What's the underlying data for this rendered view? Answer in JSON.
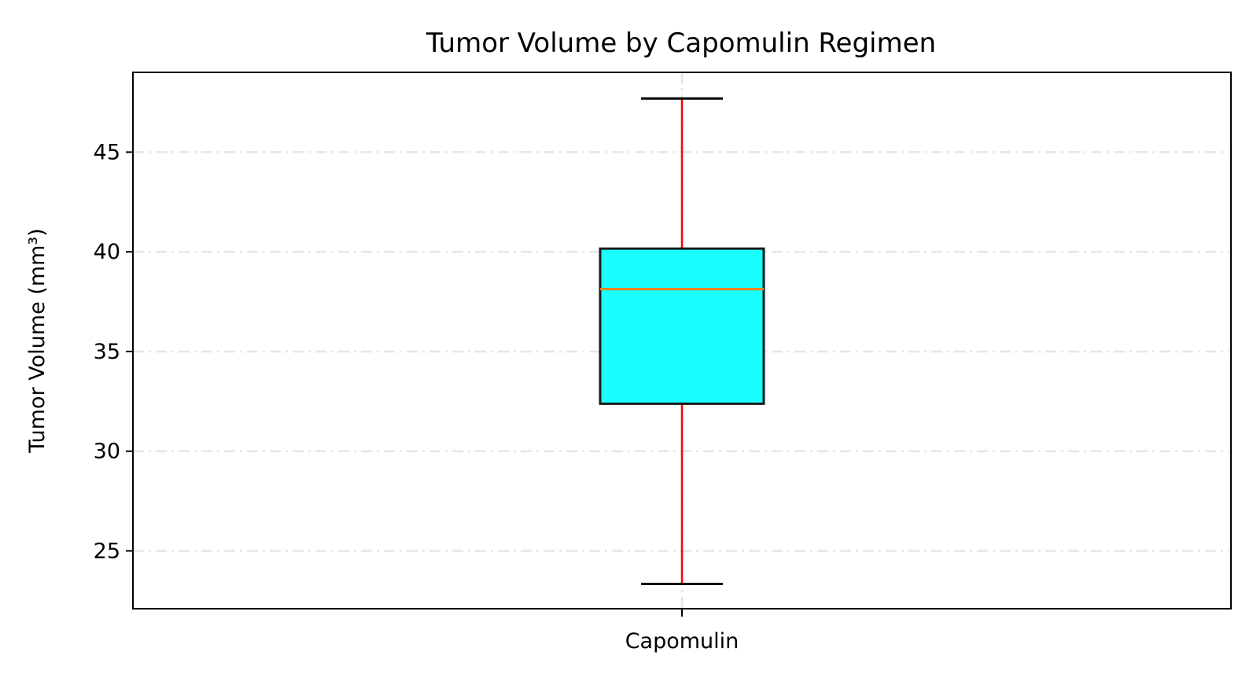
{
  "chart_data": {
    "type": "box",
    "title": "Tumor Volume by Capomulin Regimen",
    "xlabel": "",
    "ylabel": "Tumor Volume (mm³)",
    "categories": [
      "Capomulin"
    ],
    "boxes": [
      {
        "category": "Capomulin",
        "whisker_low": 23.34,
        "q1": 32.38,
        "median": 38.13,
        "q3": 40.16,
        "whisker_high": 47.69
      }
    ],
    "ylim": [
      22.1,
      49.0
    ],
    "yticks": [
      25,
      30,
      35,
      40,
      45
    ],
    "grid": true,
    "colors": {
      "box_fill": "#00ffff",
      "box_edge": "#1a1a1a",
      "median": "#ff7f0e",
      "whisker": "#ff0000",
      "cap": "#000000",
      "grid": "#e6e6e6"
    }
  }
}
